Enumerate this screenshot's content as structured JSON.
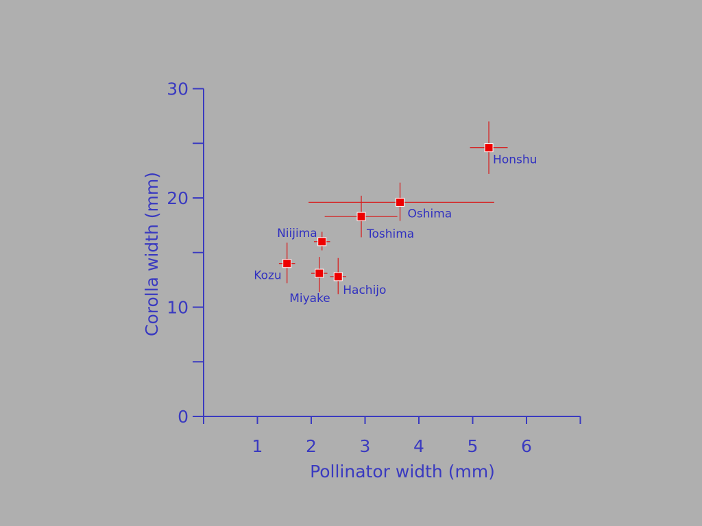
{
  "chart_data": {
    "type": "scatter",
    "title": "",
    "xlabel": "Pollinator width (mm)",
    "ylabel": "Corolla width (mm)",
    "xlim": [
      0,
      7
    ],
    "ylim": [
      0,
      30
    ],
    "x_ticks": [
      "1",
      "2",
      "3",
      "4",
      "5",
      "6"
    ],
    "y_ticks": [
      "0",
      "10",
      "20",
      "30"
    ],
    "grid": false,
    "legend": "none",
    "points": [
      {
        "label": "Honshu",
        "x": 5.3,
        "y": 24.6,
        "x_err": [
          4.95,
          5.65
        ],
        "y_err": [
          22.2,
          27.0
        ]
      },
      {
        "label": "Oshima",
        "x": 3.65,
        "y": 19.6,
        "x_err": [
          1.95,
          5.4
        ],
        "y_err": [
          17.9,
          21.4
        ]
      },
      {
        "label": "Toshima",
        "x": 2.93,
        "y": 18.3,
        "x_err": [
          2.25,
          3.6
        ],
        "y_err": [
          16.4,
          20.2
        ]
      },
      {
        "label": "Niijima",
        "x": 2.2,
        "y": 16.0,
        "x_err": [
          2.05,
          2.35
        ],
        "y_err": [
          15.2,
          16.9
        ]
      },
      {
        "label": "Kozu",
        "x": 1.55,
        "y": 14.0,
        "x_err": [
          1.4,
          1.7
        ],
        "y_err": [
          12.2,
          15.9
        ]
      },
      {
        "label": "Miyake",
        "x": 2.15,
        "y": 13.1,
        "x_err": [
          2.0,
          2.3
        ],
        "y_err": [
          11.4,
          14.6
        ]
      },
      {
        "label": "Hachijo",
        "x": 2.5,
        "y": 12.8,
        "x_err": [
          2.35,
          2.65
        ],
        "y_err": [
          11.2,
          14.5
        ]
      }
    ],
    "colors": {
      "axis": "#3a3ac0",
      "marker": "#ee0000",
      "error_bar": "#d62020",
      "label": "#3030c0",
      "background": "#afafaf"
    }
  }
}
